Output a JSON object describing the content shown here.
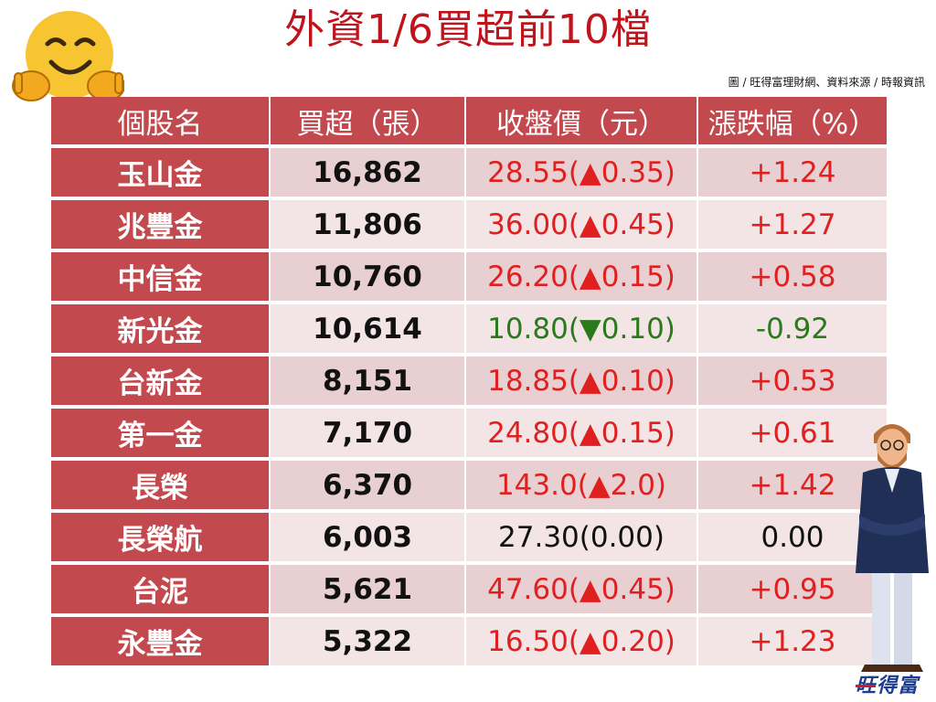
{
  "title": "外資1/6買超前10檔",
  "source_note": "圖 / 旺得富理財網、資料來源 / 時報資訊",
  "logo_text": "旺得富",
  "icons": {
    "emoji": "hugging-face-emoji",
    "illustration": "businessman-arms-crossed"
  },
  "colors": {
    "title": "#c0141c",
    "header_bg": "#c24a4f",
    "up": "#e02020",
    "down": "#2a7a1c"
  },
  "table": {
    "headers": [
      "個股名",
      "買超（張）",
      "收盤價（元）",
      "漲跌幅（%）"
    ],
    "rows": [
      {
        "name": "玉山金",
        "volume": "16,862",
        "price": "28.55(▲0.35)",
        "change": "+1.24",
        "dir": "up"
      },
      {
        "name": "兆豐金",
        "volume": "11,806",
        "price": "36.00(▲0.45)",
        "change": "+1.27",
        "dir": "up"
      },
      {
        "name": "中信金",
        "volume": "10,760",
        "price": "26.20(▲0.15)",
        "change": "+0.58",
        "dir": "up"
      },
      {
        "name": "新光金",
        "volume": "10,614",
        "price": "10.80(▼0.10)",
        "change": "-0.92",
        "dir": "down"
      },
      {
        "name": "台新金",
        "volume": "8,151",
        "price": "18.85(▲0.10)",
        "change": "+0.53",
        "dir": "up"
      },
      {
        "name": "第一金",
        "volume": "7,170",
        "price": "24.80(▲0.15)",
        "change": "+0.61",
        "dir": "up"
      },
      {
        "name": "長榮",
        "volume": "6,370",
        "price": "143.0(▲2.0)",
        "change": "+1.42",
        "dir": "up"
      },
      {
        "name": "長榮航",
        "volume": "6,003",
        "price": "27.30(0.00)",
        "change": "0.00",
        "dir": "flat"
      },
      {
        "name": "台泥",
        "volume": "5,621",
        "price": "47.60(▲0.45)",
        "change": "+0.95",
        "dir": "up"
      },
      {
        "name": "永豐金",
        "volume": "5,322",
        "price": "16.50(▲0.20)",
        "change": "+1.23",
        "dir": "up"
      }
    ]
  }
}
